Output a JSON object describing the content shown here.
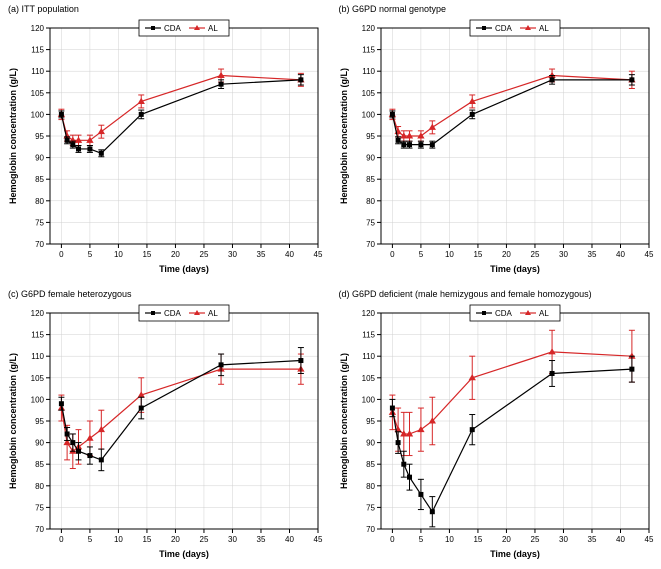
{
  "global": {
    "legend_cda": "CDA",
    "legend_al": "AL",
    "xlabel": "Time (days)",
    "ylabel": "Hemoglobin concentration (g/L)",
    "xlim": [
      -2,
      45
    ],
    "ylim": [
      70,
      120
    ],
    "xticks": [
      0,
      5,
      10,
      15,
      20,
      25,
      30,
      35,
      40,
      45
    ],
    "yticks": [
      70,
      75,
      80,
      85,
      90,
      95,
      100,
      105,
      110,
      115,
      120
    ],
    "tick_fontsize": 8,
    "label_fontsize": 9,
    "title_fontsize": 9,
    "plot_bg": "#ffffff",
    "grid_color": "#d0d0d0",
    "axis_color": "#000000",
    "cda_color": "#000000",
    "al_color": "#d62728",
    "cda_marker": "square",
    "al_marker": "triangle",
    "marker_size": 4,
    "line_width": 1.2,
    "errorbar_width": 1
  },
  "panels": [
    {
      "key": "a",
      "title": "(a) ITT population",
      "cda": {
        "x": [
          0,
          1,
          2,
          3,
          5,
          7,
          14,
          28,
          42
        ],
        "y": [
          100,
          94,
          93,
          92,
          92,
          91,
          100,
          107,
          108
        ],
        "err": [
          0.8,
          0.8,
          0.8,
          0.8,
          0.8,
          0.8,
          1.0,
          1.0,
          1.2
        ]
      },
      "al": {
        "x": [
          0,
          1,
          2,
          3,
          5,
          7,
          14,
          28,
          42
        ],
        "y": [
          100,
          95,
          94,
          94,
          94,
          96,
          103,
          109,
          108
        ],
        "err": [
          1.2,
          1.2,
          1.2,
          1.2,
          1.2,
          1.5,
          1.5,
          1.5,
          1.5
        ]
      }
    },
    {
      "key": "b",
      "title": "(b) G6PD normal genotype",
      "cda": {
        "x": [
          0,
          1,
          2,
          3,
          5,
          7,
          14,
          28,
          42
        ],
        "y": [
          100,
          94,
          93,
          93,
          93,
          93,
          100,
          108,
          108
        ],
        "err": [
          0.8,
          0.8,
          0.8,
          0.8,
          0.8,
          0.8,
          1.0,
          1.0,
          1.2
        ]
      },
      "al": {
        "x": [
          0,
          1,
          2,
          3,
          5,
          7,
          14,
          28,
          42
        ],
        "y": [
          100,
          96,
          95,
          95,
          95,
          97,
          103,
          109,
          108
        ],
        "err": [
          1.2,
          1.2,
          1.2,
          1.2,
          1.2,
          1.5,
          1.5,
          1.5,
          2.0
        ]
      }
    },
    {
      "key": "c",
      "title": "(c) G6PD female heterozygous",
      "cda": {
        "x": [
          0,
          1,
          2,
          3,
          5,
          7,
          14,
          28,
          42
        ],
        "y": [
          99,
          92,
          90,
          88,
          87,
          86,
          98,
          108,
          109
        ],
        "err": [
          1.5,
          1.5,
          2.0,
          2.0,
          2.0,
          2.5,
          2.5,
          2.5,
          3.0
        ]
      },
      "al": {
        "x": [
          0,
          1,
          2,
          3,
          5,
          7,
          14,
          28,
          42
        ],
        "y": [
          98,
          90,
          88,
          89,
          91,
          93,
          101,
          107,
          107
        ],
        "err": [
          3.0,
          4.0,
          4.0,
          4.0,
          4.0,
          4.5,
          4.0,
          3.5,
          3.5
        ]
      }
    },
    {
      "key": "d",
      "title": "(d) G6PD deficient (male hemizygous and female homozygous)",
      "cda": {
        "x": [
          0,
          1,
          2,
          3,
          5,
          7,
          14,
          28,
          42
        ],
        "y": [
          98,
          90,
          85,
          82,
          78,
          74,
          93,
          106,
          107
        ],
        "err": [
          2.0,
          2.5,
          3.0,
          3.0,
          3.5,
          3.5,
          3.5,
          3.0,
          3.0
        ]
      },
      "al": {
        "x": [
          0,
          1,
          2,
          3,
          5,
          7,
          14,
          28,
          42
        ],
        "y": [
          97,
          93,
          92,
          92,
          93,
          95,
          105,
          111,
          110
        ],
        "err": [
          4.0,
          5.0,
          5.0,
          5.0,
          5.0,
          5.5,
          5.0,
          5.0,
          6.0
        ]
      }
    }
  ]
}
